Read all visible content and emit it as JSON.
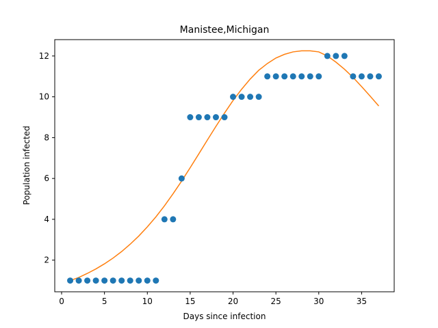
{
  "chart_data": {
    "type": "scatter",
    "title": "Manistee,Michigan",
    "xlabel": "Days since infection",
    "ylabel": "Population infected",
    "xlim": [
      -0.8,
      38.8
    ],
    "ylim": [
      0.45,
      12.8
    ],
    "xticks": [
      0,
      5,
      10,
      15,
      20,
      25,
      30,
      35
    ],
    "yticks": [
      2,
      4,
      6,
      8,
      10,
      12
    ],
    "grid": false,
    "colors": {
      "points": "#1f77b4",
      "fit": "#ff7f0e"
    },
    "series": [
      {
        "type": "scatter",
        "x": [
          1,
          2,
          3,
          4,
          5,
          6,
          7,
          8,
          9,
          10,
          11,
          12,
          13,
          14,
          15,
          16,
          17,
          18,
          19,
          20,
          21,
          22,
          23,
          24,
          25,
          26,
          27,
          28,
          29,
          30,
          31,
          32,
          33,
          34,
          35,
          36,
          37
        ],
        "y": [
          1,
          1,
          1,
          1,
          1,
          1,
          1,
          1,
          1,
          1,
          1,
          4,
          4,
          6,
          9,
          9,
          9,
          9,
          9,
          10,
          10,
          10,
          10,
          11,
          11,
          11,
          11,
          11,
          11,
          11,
          12,
          12,
          12,
          11,
          11,
          11,
          11
        ]
      },
      {
        "type": "line",
        "x": [
          1,
          2,
          3,
          4,
          5,
          6,
          7,
          8,
          9,
          10,
          11,
          12,
          13,
          14,
          15,
          16,
          17,
          18,
          19,
          20,
          21,
          22,
          23,
          24,
          25,
          26,
          27,
          28,
          29,
          30,
          31,
          32,
          33,
          34,
          35,
          36,
          37
        ],
        "y": [
          1.0,
          1.15,
          1.35,
          1.57,
          1.82,
          2.1,
          2.42,
          2.78,
          3.18,
          3.63,
          4.12,
          4.66,
          5.25,
          5.87,
          6.53,
          7.2,
          7.88,
          8.55,
          9.2,
          9.82,
          10.37,
          10.87,
          11.3,
          11.63,
          11.9,
          12.08,
          12.2,
          12.25,
          12.25,
          12.2,
          12.0,
          11.7,
          11.35,
          10.95,
          10.5,
          10.03,
          9.55
        ]
      }
    ]
  }
}
